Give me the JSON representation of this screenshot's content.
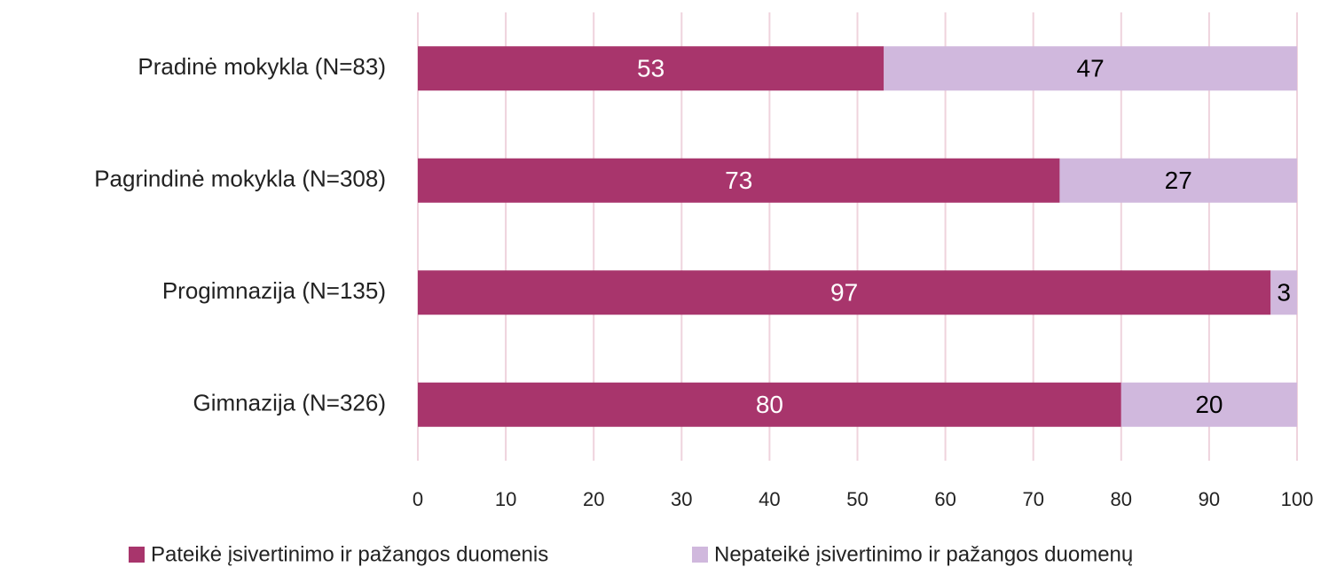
{
  "chart_data": {
    "type": "bar",
    "orientation": "horizontal",
    "stacked": true,
    "categories": [
      "Pradinė mokykla (N=83)",
      "Pagrindinė mokykla (N=308)",
      "Progimnazija (N=135)",
      "Gimnazija (N=326)"
    ],
    "series": [
      {
        "name": "Pateikė įsivertinimo ir pažangos duomenis",
        "color": "#a8356c",
        "values": [
          53,
          73,
          97,
          80
        ]
      },
      {
        "name": "Nepateikė įsivertinimo ir pažangos duomenų",
        "color": "#d0b8dd",
        "values": [
          47,
          27,
          3,
          20
        ]
      }
    ],
    "xlim": [
      0,
      100
    ],
    "xticks": [
      0,
      10,
      20,
      30,
      40,
      50,
      60,
      70,
      80,
      90,
      100
    ],
    "grid": true,
    "grid_color": "#efd3dd",
    "legend": "bottom"
  }
}
